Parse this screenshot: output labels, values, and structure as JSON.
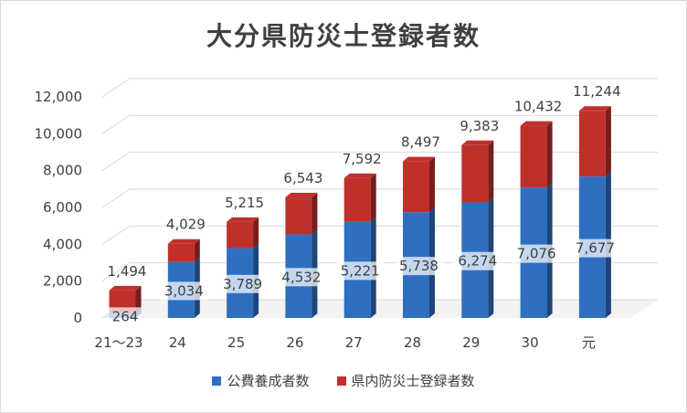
{
  "chart_data": {
    "type": "bar",
    "stacked": true,
    "title": "大分県防災士登録者数",
    "categories": [
      "21～23",
      "24",
      "25",
      "26",
      "27",
      "28",
      "29",
      "30",
      "元"
    ],
    "series": [
      {
        "name": "公費養成者数",
        "values": [
          264,
          3034,
          3789,
          4532,
          5221,
          5738,
          6274,
          7076,
          7677
        ],
        "labels": [
          "264",
          "3,034",
          "3,789",
          "4,532",
          "5,221",
          "5,738",
          "6,274",
          "7,076",
          "7,677"
        ],
        "color": "#2e6fc2"
      },
      {
        "name": "県内防災士登録者数",
        "values": [
          1230,
          995,
          1426,
          2011,
          2371,
          2759,
          3109,
          3356,
          3567
        ],
        "color": "#c0302b"
      }
    ],
    "totals": [
      1494,
      4029,
      5215,
      6543,
      7592,
      8497,
      9383,
      10432,
      11244
    ],
    "total_labels": [
      "1,494",
      "4,029",
      "5,215",
      "6,543",
      "7,592",
      "8,497",
      "9,383",
      "10,432",
      "11,244"
    ],
    "y_ticks": [
      "0",
      "2,000",
      "4,000",
      "6,000",
      "8,000",
      "10,000",
      "12,000"
    ],
    "ylim": [
      0,
      12000
    ],
    "legend_position": "bottom",
    "grid": true
  }
}
